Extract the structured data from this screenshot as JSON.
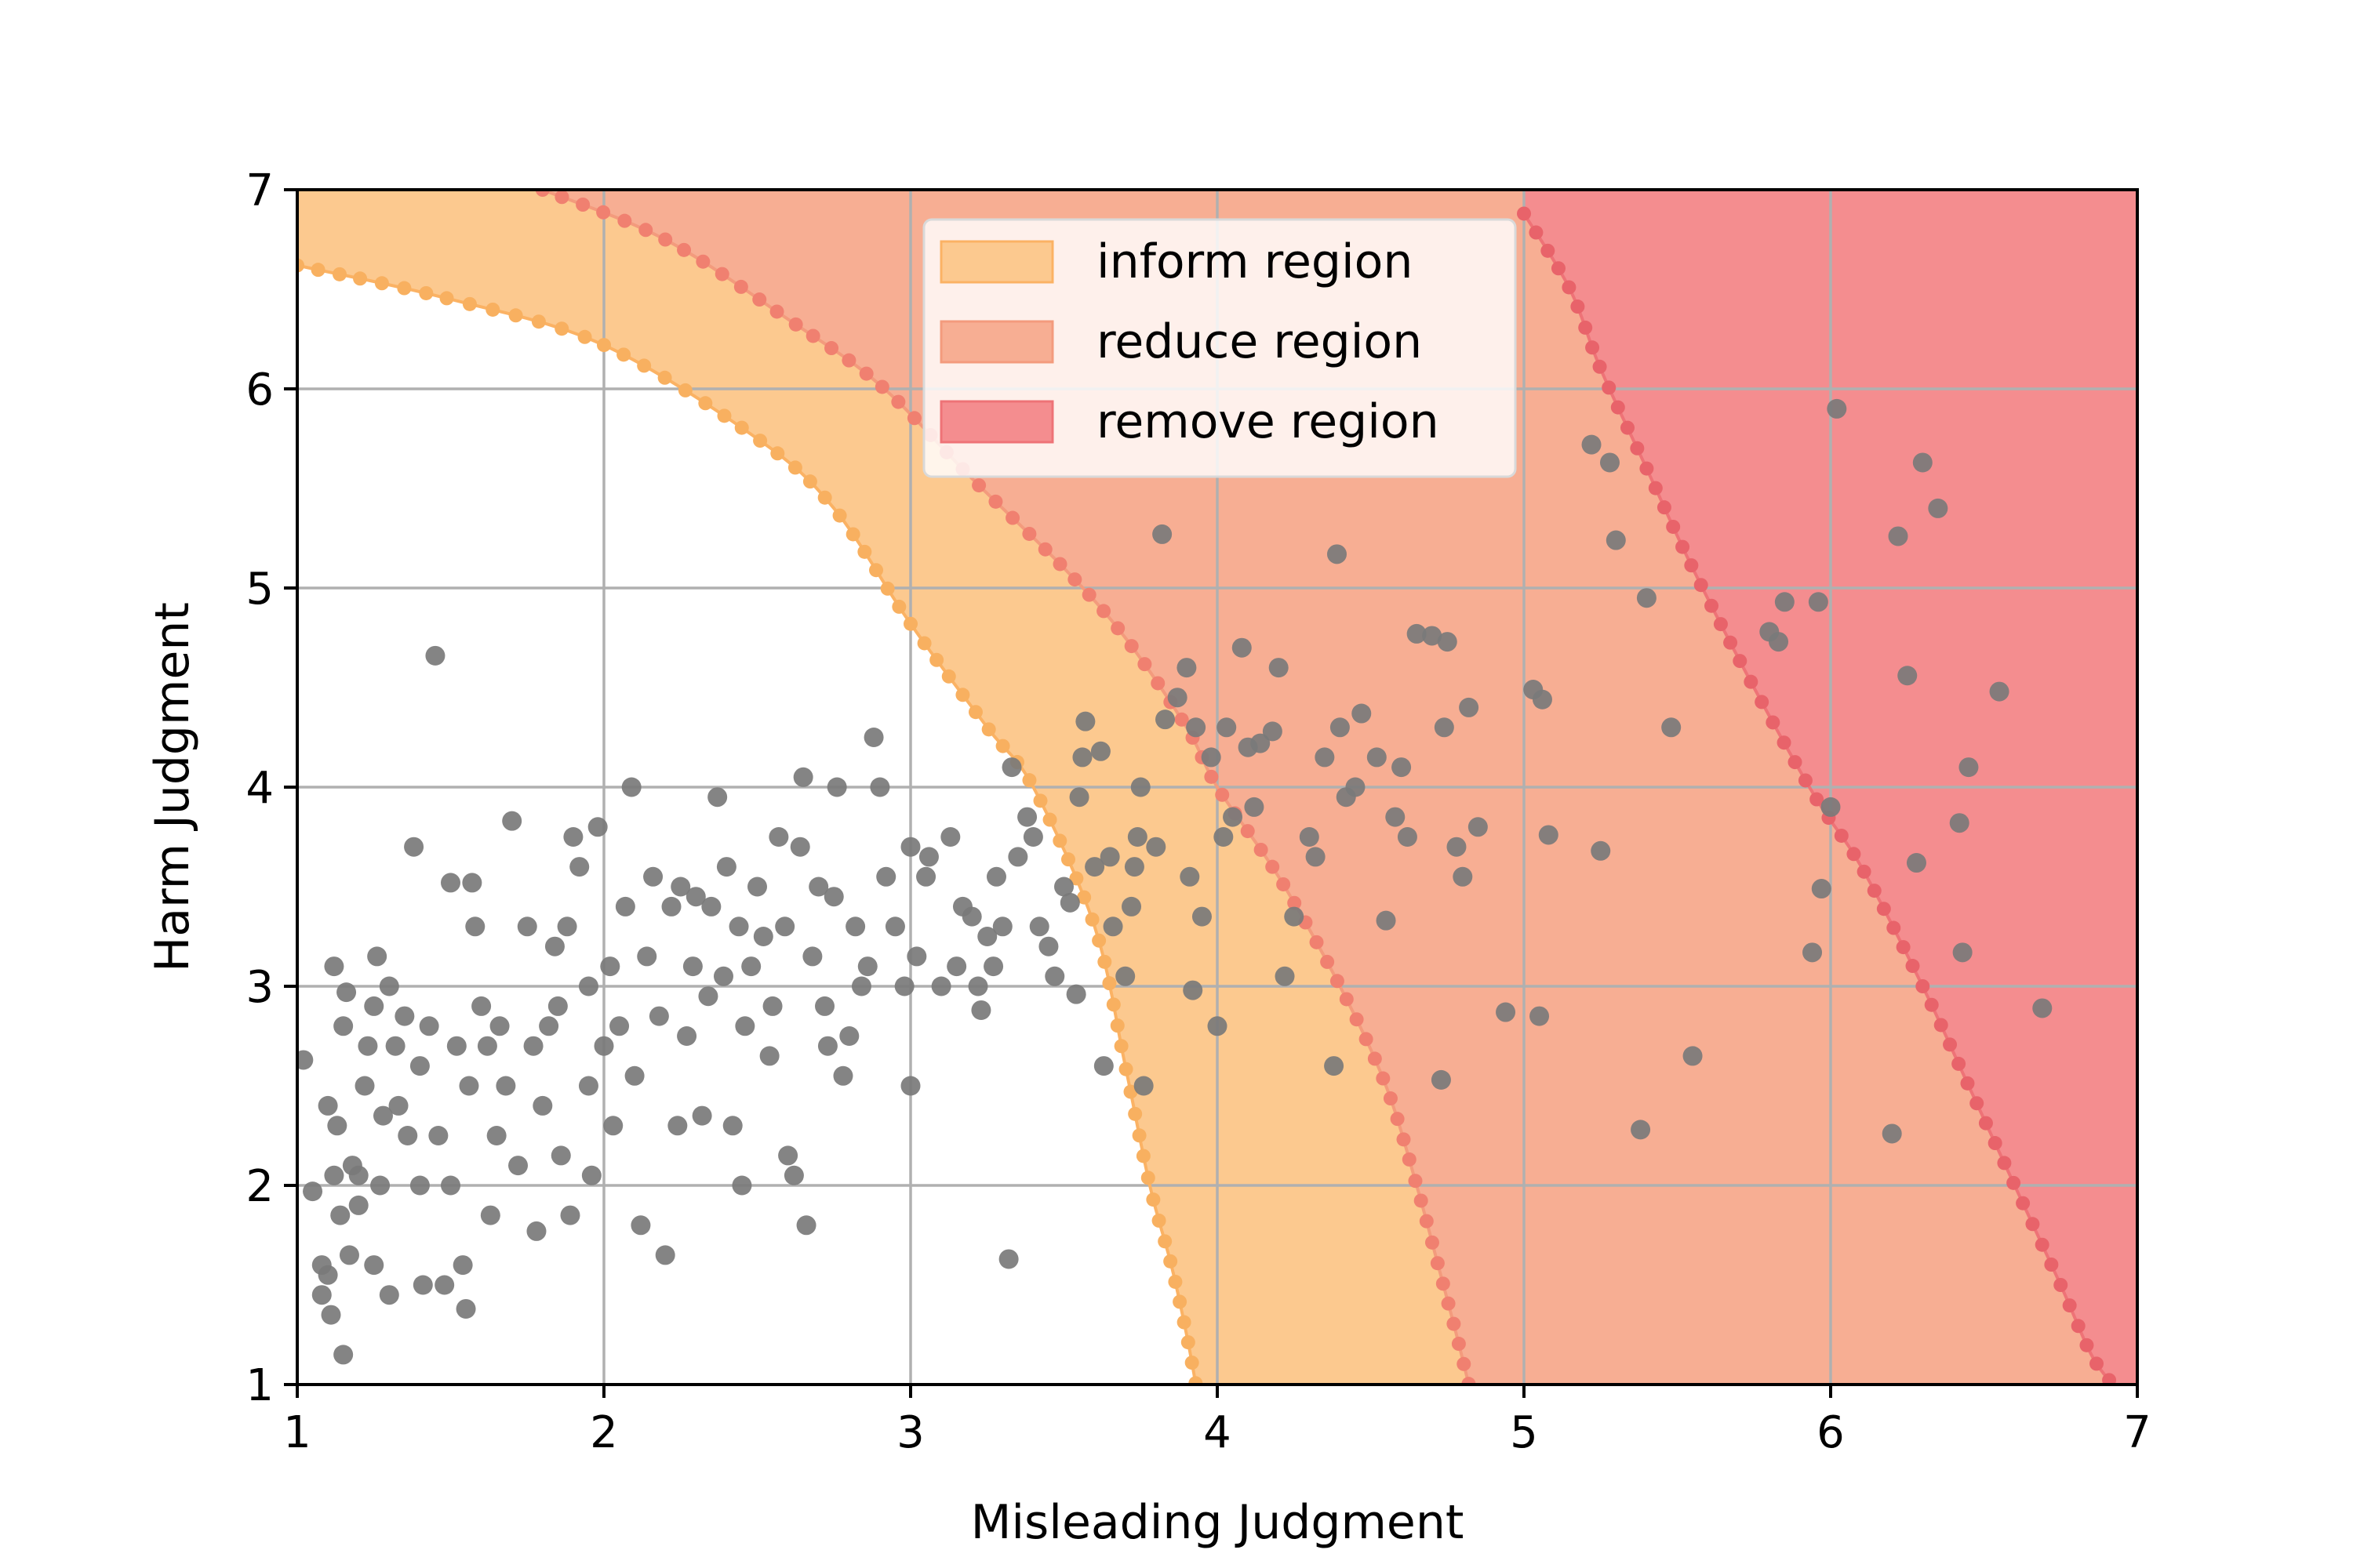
{
  "chart_data": {
    "type": "scatter",
    "xlabel": "Misleading Judgment",
    "ylabel": "Harm Judgment",
    "xlim": [
      1,
      7
    ],
    "ylim": [
      1,
      7
    ],
    "xticks": [
      "1",
      "2",
      "3",
      "4",
      "5",
      "6",
      "7"
    ],
    "yticks": [
      "1",
      "2",
      "3",
      "4",
      "5",
      "6",
      "7"
    ],
    "grid": true,
    "legend_position": "top-center",
    "regions": [
      {
        "name": "inform region",
        "color": "#fcc98f",
        "edge_color": "#fbb264",
        "boundary_color": "#f8b060",
        "boundary": [
          [
            1.0,
            6.62
          ],
          [
            1.5,
            6.45
          ],
          [
            2.0,
            6.22
          ],
          [
            2.5,
            5.75
          ],
          [
            2.75,
            5.4
          ],
          [
            3.0,
            4.82
          ],
          [
            3.25,
            4.3
          ],
          [
            3.4,
            4.0
          ],
          [
            3.6,
            3.3
          ],
          [
            3.7,
            2.6
          ],
          [
            3.78,
            2.0
          ],
          [
            3.85,
            1.6
          ],
          [
            3.9,
            1.25
          ],
          [
            3.93,
            1.0
          ]
        ]
      },
      {
        "name": "reduce region",
        "color": "#f7ae93",
        "edge_color": "#f39b7d",
        "boundary_color": "#f08070",
        "boundary": [
          [
            1.8,
            7.0
          ],
          [
            2.2,
            6.75
          ],
          [
            2.6,
            6.35
          ],
          [
            2.9,
            6.02
          ],
          [
            3.2,
            5.55
          ],
          [
            3.5,
            5.1
          ],
          [
            3.7,
            4.75
          ],
          [
            3.9,
            4.3
          ],
          [
            4.0,
            4.0
          ],
          [
            4.2,
            3.55
          ],
          [
            4.4,
            3.0
          ],
          [
            4.55,
            2.5
          ],
          [
            4.65,
            2.0
          ],
          [
            4.72,
            1.6
          ],
          [
            4.78,
            1.25
          ],
          [
            4.82,
            1.0
          ]
        ]
      },
      {
        "name": "remove region",
        "color": "#f48d8f",
        "edge_color": "#ee7377",
        "boundary_color": "#e8636a",
        "boundary": [
          [
            5.0,
            6.88
          ],
          [
            5.15,
            6.5
          ],
          [
            5.25,
            6.1
          ],
          [
            5.4,
            5.6
          ],
          [
            5.55,
            5.1
          ],
          [
            5.75,
            4.5
          ],
          [
            5.95,
            3.95
          ],
          [
            6.1,
            3.6
          ],
          [
            6.3,
            3.0
          ],
          [
            6.45,
            2.5
          ],
          [
            6.6,
            2.0
          ],
          [
            6.75,
            1.5
          ],
          [
            6.85,
            1.15
          ],
          [
            6.92,
            1.0
          ]
        ]
      }
    ],
    "points_color": "#7a7a7a",
    "points": [
      [
        1.02,
        2.63
      ],
      [
        1.05,
        1.97
      ],
      [
        1.08,
        1.6
      ],
      [
        1.08,
        1.45
      ],
      [
        1.1,
        1.55
      ],
      [
        1.1,
        2.4
      ],
      [
        1.11,
        1.35
      ],
      [
        1.12,
        2.05
      ],
      [
        1.12,
        3.1
      ],
      [
        1.13,
        2.3
      ],
      [
        1.14,
        1.85
      ],
      [
        1.15,
        1.15
      ],
      [
        1.15,
        2.8
      ],
      [
        1.16,
        2.97
      ],
      [
        1.17,
        1.65
      ],
      [
        1.18,
        2.1
      ],
      [
        1.2,
        1.9
      ],
      [
        1.2,
        2.05
      ],
      [
        1.22,
        2.5
      ],
      [
        1.23,
        2.7
      ],
      [
        1.25,
        2.9
      ],
      [
        1.25,
        1.6
      ],
      [
        1.26,
        3.15
      ],
      [
        1.27,
        2.0
      ],
      [
        1.28,
        2.35
      ],
      [
        1.3,
        3.0
      ],
      [
        1.3,
        1.45
      ],
      [
        1.32,
        2.7
      ],
      [
        1.33,
        2.4
      ],
      [
        1.35,
        2.85
      ],
      [
        1.36,
        2.25
      ],
      [
        1.38,
        3.7
      ],
      [
        1.4,
        2.0
      ],
      [
        1.4,
        2.6
      ],
      [
        1.41,
        1.5
      ],
      [
        1.43,
        2.8
      ],
      [
        1.45,
        4.66
      ],
      [
        1.46,
        2.25
      ],
      [
        1.48,
        1.5
      ],
      [
        1.5,
        2.0
      ],
      [
        1.5,
        3.52
      ],
      [
        1.52,
        2.7
      ],
      [
        1.54,
        1.6
      ],
      [
        1.55,
        1.38
      ],
      [
        1.56,
        2.5
      ],
      [
        1.57,
        3.52
      ],
      [
        1.58,
        3.3
      ],
      [
        1.6,
        2.9
      ],
      [
        1.62,
        2.7
      ],
      [
        1.63,
        1.85
      ],
      [
        1.65,
        2.25
      ],
      [
        1.66,
        2.8
      ],
      [
        1.68,
        2.5
      ],
      [
        1.7,
        3.83
      ],
      [
        1.72,
        2.1
      ],
      [
        1.75,
        3.3
      ],
      [
        1.77,
        2.7
      ],
      [
        1.78,
        1.77
      ],
      [
        1.8,
        2.4
      ],
      [
        1.82,
        2.8
      ],
      [
        1.84,
        3.2
      ],
      [
        1.85,
        2.9
      ],
      [
        1.86,
        2.15
      ],
      [
        1.88,
        3.3
      ],
      [
        1.89,
        1.85
      ],
      [
        1.9,
        3.75
      ],
      [
        1.92,
        3.6
      ],
      [
        1.95,
        2.5
      ],
      [
        1.95,
        3.0
      ],
      [
        1.96,
        2.05
      ],
      [
        1.98,
        3.8
      ],
      [
        2.0,
        2.7
      ],
      [
        2.02,
        3.1
      ],
      [
        2.03,
        2.3
      ],
      [
        2.05,
        2.8
      ],
      [
        2.07,
        3.4
      ],
      [
        2.09,
        4.0
      ],
      [
        2.1,
        2.55
      ],
      [
        2.12,
        1.8
      ],
      [
        2.14,
        3.15
      ],
      [
        2.16,
        3.55
      ],
      [
        2.18,
        2.85
      ],
      [
        2.2,
        1.65
      ],
      [
        2.22,
        3.4
      ],
      [
        2.24,
        2.3
      ],
      [
        2.25,
        3.5
      ],
      [
        2.27,
        2.75
      ],
      [
        2.29,
        3.1
      ],
      [
        2.3,
        3.45
      ],
      [
        2.32,
        2.35
      ],
      [
        2.34,
        2.95
      ],
      [
        2.35,
        3.4
      ],
      [
        2.37,
        3.95
      ],
      [
        2.39,
        3.05
      ],
      [
        2.4,
        3.6
      ],
      [
        2.42,
        2.3
      ],
      [
        2.44,
        3.3
      ],
      [
        2.45,
        2.0
      ],
      [
        2.46,
        2.8
      ],
      [
        2.48,
        3.1
      ],
      [
        2.5,
        3.5
      ],
      [
        2.52,
        3.25
      ],
      [
        2.54,
        2.65
      ],
      [
        2.55,
        2.9
      ],
      [
        2.57,
        3.75
      ],
      [
        2.59,
        3.3
      ],
      [
        2.6,
        2.15
      ],
      [
        2.62,
        2.05
      ],
      [
        2.64,
        3.7
      ],
      [
        2.65,
        4.05
      ],
      [
        2.66,
        1.8
      ],
      [
        2.68,
        3.15
      ],
      [
        2.7,
        3.5
      ],
      [
        2.72,
        2.9
      ],
      [
        2.73,
        2.7
      ],
      [
        2.75,
        3.45
      ],
      [
        2.76,
        4.0
      ],
      [
        2.78,
        2.55
      ],
      [
        2.8,
        2.75
      ],
      [
        2.82,
        3.3
      ],
      [
        2.84,
        3.0
      ],
      [
        2.86,
        3.1
      ],
      [
        2.88,
        4.25
      ],
      [
        2.9,
        4.0
      ],
      [
        2.92,
        3.55
      ],
      [
        2.95,
        3.3
      ],
      [
        2.98,
        3.0
      ],
      [
        3.0,
        2.5
      ],
      [
        3.0,
        3.7
      ],
      [
        3.02,
        3.15
      ],
      [
        3.05,
        3.55
      ],
      [
        3.06,
        3.65
      ],
      [
        3.1,
        3.0
      ],
      [
        3.13,
        3.75
      ],
      [
        3.15,
        3.1
      ],
      [
        3.17,
        3.4
      ],
      [
        3.2,
        3.35
      ],
      [
        3.22,
        3.0
      ],
      [
        3.23,
        2.88
      ],
      [
        3.25,
        3.25
      ],
      [
        3.27,
        3.1
      ],
      [
        3.28,
        3.55
      ],
      [
        3.3,
        3.3
      ],
      [
        3.32,
        1.63
      ],
      [
        3.33,
        4.1
      ],
      [
        3.35,
        3.65
      ],
      [
        3.38,
        3.85
      ],
      [
        3.4,
        3.75
      ],
      [
        3.42,
        3.3
      ],
      [
        3.45,
        3.2
      ],
      [
        3.47,
        3.05
      ],
      [
        3.5,
        3.5
      ],
      [
        3.52,
        3.42
      ],
      [
        3.54,
        2.96
      ],
      [
        3.55,
        3.95
      ],
      [
        3.56,
        4.15
      ],
      [
        3.57,
        4.33
      ],
      [
        3.6,
        3.6
      ],
      [
        3.62,
        4.18
      ],
      [
        3.63,
        2.6
      ],
      [
        3.65,
        3.65
      ],
      [
        3.66,
        3.3
      ],
      [
        3.7,
        3.05
      ],
      [
        3.72,
        3.4
      ],
      [
        3.73,
        3.6
      ],
      [
        3.74,
        3.75
      ],
      [
        3.75,
        4.0
      ],
      [
        3.76,
        2.5
      ],
      [
        3.8,
        3.7
      ],
      [
        3.82,
        5.27
      ],
      [
        3.83,
        4.34
      ],
      [
        3.87,
        4.45
      ],
      [
        3.9,
        4.6
      ],
      [
        3.91,
        3.55
      ],
      [
        3.92,
        2.98
      ],
      [
        3.93,
        4.3
      ],
      [
        3.95,
        3.35
      ],
      [
        3.98,
        4.15
      ],
      [
        4.0,
        2.8
      ],
      [
        4.02,
        3.75
      ],
      [
        4.03,
        4.3
      ],
      [
        4.05,
        3.85
      ],
      [
        4.08,
        4.7
      ],
      [
        4.1,
        4.2
      ],
      [
        4.12,
        3.9
      ],
      [
        4.14,
        4.22
      ],
      [
        4.18,
        4.28
      ],
      [
        4.2,
        4.6
      ],
      [
        4.22,
        3.05
      ],
      [
        4.25,
        3.35
      ],
      [
        4.3,
        3.75
      ],
      [
        4.32,
        3.65
      ],
      [
        4.35,
        4.15
      ],
      [
        4.38,
        2.6
      ],
      [
        4.39,
        5.17
      ],
      [
        4.4,
        4.3
      ],
      [
        4.42,
        3.95
      ],
      [
        4.45,
        4.0
      ],
      [
        4.47,
        4.37
      ],
      [
        4.52,
        4.15
      ],
      [
        4.55,
        3.33
      ],
      [
        4.58,
        3.85
      ],
      [
        4.6,
        4.1
      ],
      [
        4.62,
        3.75
      ],
      [
        4.65,
        4.77
      ],
      [
        4.7,
        4.76
      ],
      [
        4.73,
        2.53
      ],
      [
        4.74,
        4.3
      ],
      [
        4.75,
        4.73
      ],
      [
        4.78,
        3.7
      ],
      [
        4.8,
        3.55
      ],
      [
        4.82,
        4.4
      ],
      [
        4.85,
        3.8
      ],
      [
        4.94,
        2.87
      ],
      [
        5.03,
        4.49
      ],
      [
        5.05,
        2.85
      ],
      [
        5.06,
        4.44
      ],
      [
        5.08,
        3.76
      ],
      [
        5.22,
        5.72
      ],
      [
        5.25,
        3.68
      ],
      [
        5.28,
        5.63
      ],
      [
        5.3,
        5.24
      ],
      [
        5.38,
        2.28
      ],
      [
        5.4,
        4.95
      ],
      [
        5.48,
        4.3
      ],
      [
        5.55,
        2.65
      ],
      [
        5.8,
        4.78
      ],
      [
        5.83,
        4.73
      ],
      [
        5.85,
        4.93
      ],
      [
        5.94,
        3.17
      ],
      [
        5.96,
        4.93
      ],
      [
        5.97,
        3.49
      ],
      [
        6.0,
        3.9
      ],
      [
        6.02,
        5.9
      ],
      [
        6.2,
        2.26
      ],
      [
        6.22,
        5.26
      ],
      [
        6.25,
        4.56
      ],
      [
        6.28,
        3.62
      ],
      [
        6.3,
        5.63
      ],
      [
        6.35,
        5.4
      ],
      [
        6.42,
        3.82
      ],
      [
        6.43,
        3.17
      ],
      [
        6.45,
        4.1
      ],
      [
        6.55,
        4.48
      ],
      [
        6.69,
        2.89
      ]
    ]
  },
  "legend": [
    {
      "label": "inform region",
      "color": "#fcc98f",
      "edge": "#fbb264"
    },
    {
      "label": "reduce region",
      "color": "#f7ae93",
      "edge": "#f39b7d"
    },
    {
      "label": "remove region",
      "color": "#f48d8f",
      "edge": "#ee7377"
    }
  ]
}
